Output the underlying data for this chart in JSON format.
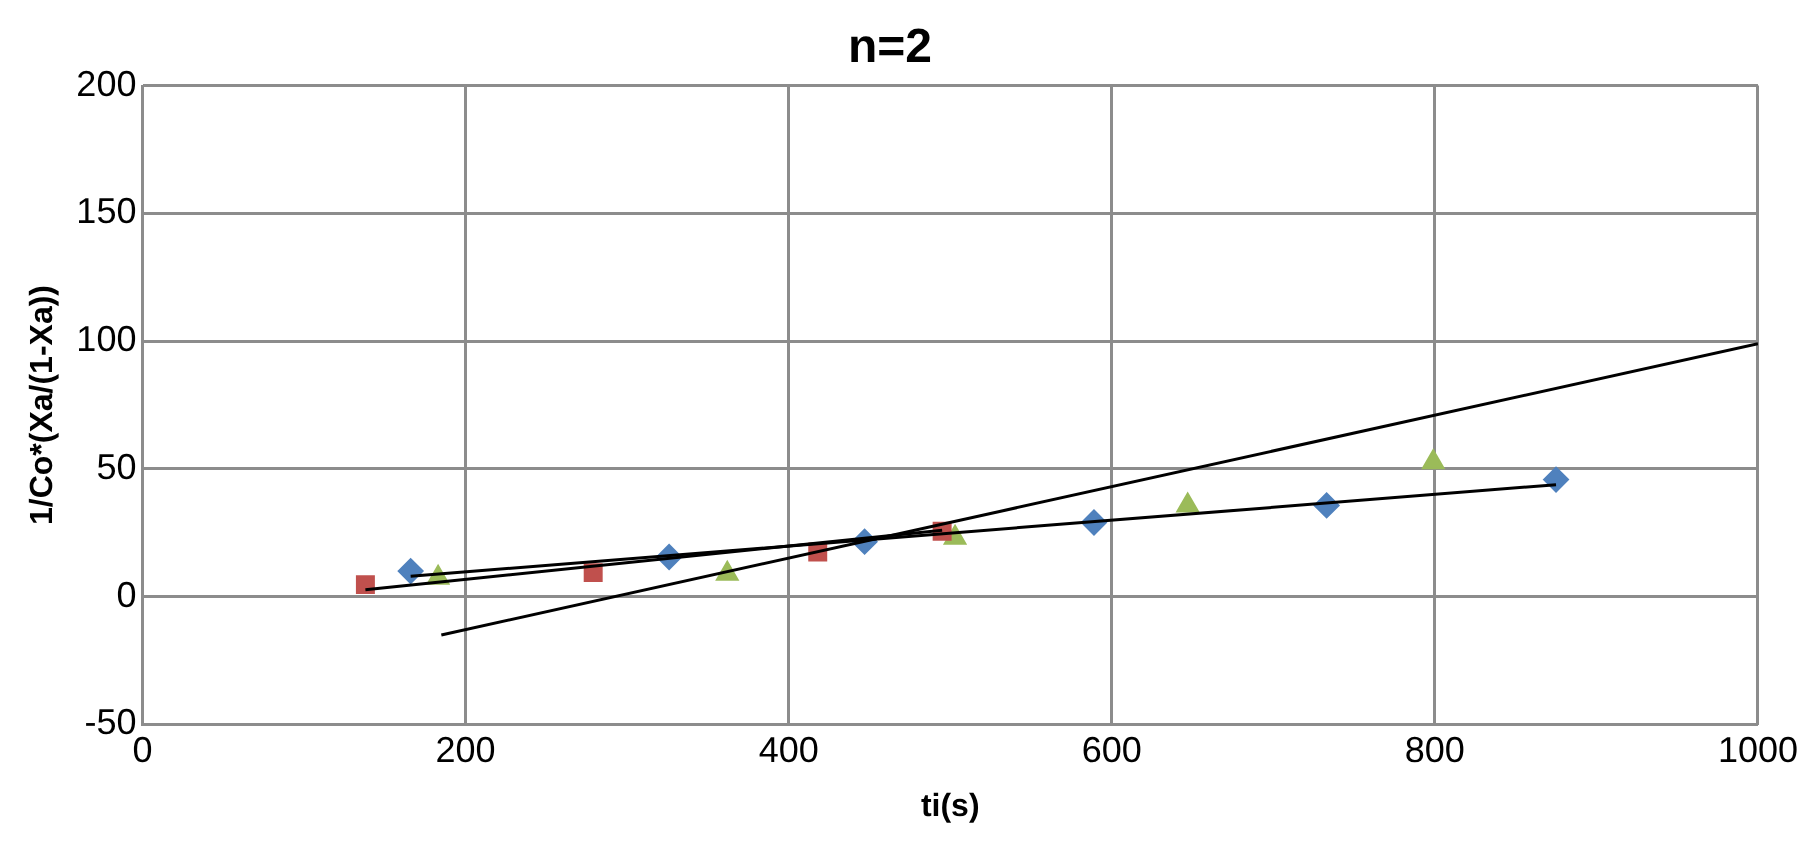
{
  "chart_data": {
    "type": "scatter",
    "title": "n=2",
    "xlabel": "ti(s)",
    "ylabel": "1/Co*(Xa/(1-Xa))",
    "xlim": [
      0,
      1000
    ],
    "xticks": [
      0,
      200,
      400,
      600,
      800,
      1000
    ],
    "ylim": [
      -50,
      200
    ],
    "yticks": [
      -50,
      0,
      50,
      100,
      150,
      200
    ],
    "grid": true,
    "legend": false,
    "series": [
      {
        "color": "#4f81bd",
        "marker": "diamond",
        "x": [
          166,
          326,
          447,
          589,
          733,
          875
        ],
        "values": [
          10,
          15.5,
          21.5,
          29,
          35.7,
          45.8
        ]
      },
      {
        "color": "#c0504d",
        "marker": "square",
        "x": [
          138,
          279,
          418,
          495
        ],
        "values": [
          4.7,
          9.4,
          17.5,
          25.6
        ]
      },
      {
        "color": "#9bbb59",
        "marker": "triangle",
        "x": [
          183,
          362,
          503,
          647,
          799
        ],
        "values": [
          7.4,
          9,
          23,
          35.7,
          52.6
        ]
      },
      {
        "type": "line",
        "color": "#000000",
        "marker": "none",
        "x": [
          166,
          875
        ],
        "values": [
          8,
          43.8
        ]
      },
      {
        "type": "line",
        "color": "#000000",
        "marker": "none",
        "x": [
          138,
          495
        ],
        "values": [
          2.7,
          26
        ]
      },
      {
        "type": "line",
        "color": "#000000",
        "marker": "none",
        "x": [
          185,
          1000
        ],
        "values": [
          -15,
          99
        ]
      }
    ]
  }
}
